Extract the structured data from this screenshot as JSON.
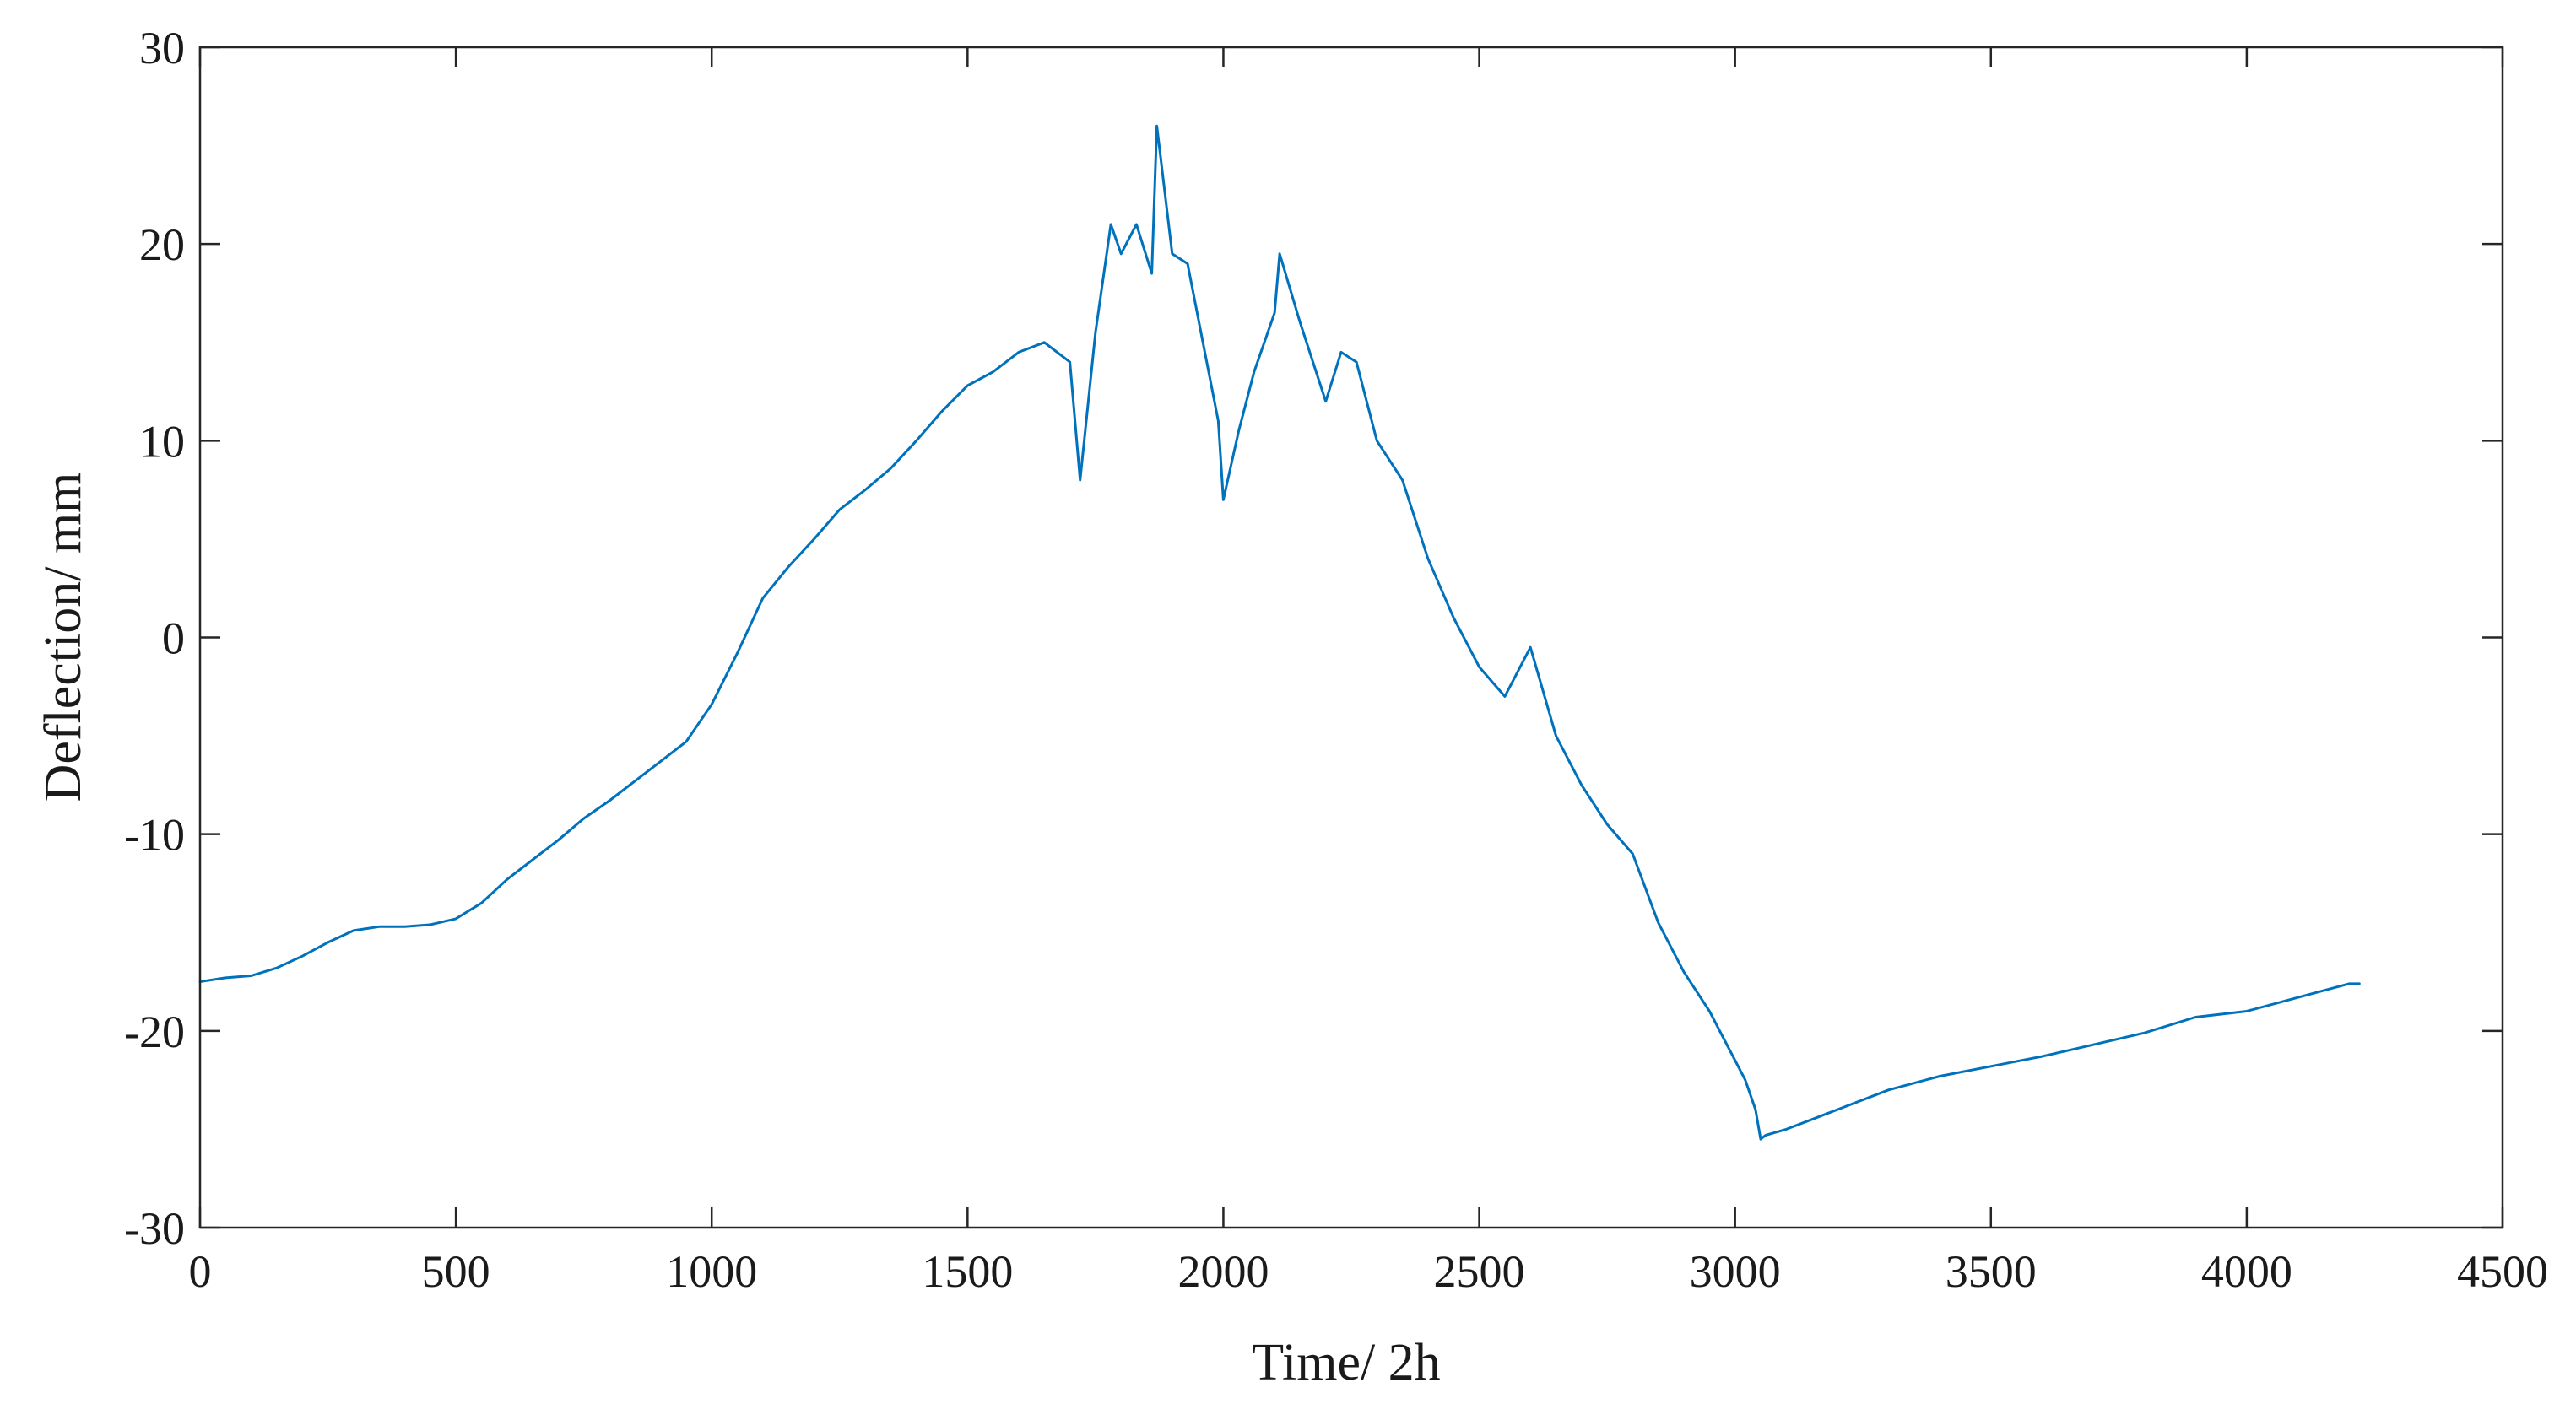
{
  "chart_data": {
    "type": "line",
    "title": "",
    "xlabel": "Time/ 2h",
    "ylabel": "Deflection/ mm",
    "xlim": [
      0,
      4500
    ],
    "ylim": [
      -30,
      30
    ],
    "xticks": [
      0,
      500,
      1000,
      1500,
      2000,
      2500,
      3000,
      3500,
      4000,
      4500
    ],
    "yticks": [
      -30,
      -20,
      -10,
      0,
      10,
      20,
      30
    ],
    "grid": false,
    "legend": "none",
    "line_color": "#0072BD",
    "series": [
      {
        "x": [
          0,
          50,
          100,
          150,
          200,
          250,
          300,
          350,
          400,
          450,
          500,
          550,
          600,
          650,
          700,
          750,
          800,
          850,
          900,
          950,
          1000,
          1050,
          1100,
          1150,
          1200,
          1250,
          1300,
          1350,
          1400,
          1450,
          1500,
          1550,
          1600,
          1650,
          1700,
          1720,
          1750,
          1780,
          1800,
          1830,
          1860,
          1870,
          1900,
          1930,
          1960,
          1990,
          2000,
          2030,
          2060,
          2100,
          2110,
          2150,
          2200,
          2230,
          2260,
          2300,
          2350,
          2400,
          2450,
          2500,
          2550,
          2600,
          2650,
          2700,
          2750,
          2800,
          2850,
          2900,
          2950,
          3000,
          3020,
          3040,
          3050,
          3060,
          3100,
          3150,
          3200,
          3300,
          3400,
          3500,
          3600,
          3700,
          3800,
          3900,
          4000,
          4100,
          4200,
          4220
        ],
        "y": [
          -17.5,
          -17.3,
          -17.2,
          -16.8,
          -16.2,
          -15.5,
          -14.9,
          -14.7,
          -14.7,
          -14.6,
          -14.3,
          -13.5,
          -12.3,
          -11.3,
          -10.3,
          -9.2,
          -8.3,
          -7.3,
          -6.3,
          -5.3,
          -3.4,
          -0.8,
          2.0,
          3.6,
          5.0,
          6.5,
          7.5,
          8.6,
          10.0,
          11.5,
          12.8,
          13.5,
          14.5,
          15.0,
          14.0,
          8.0,
          15.5,
          21.0,
          19.5,
          21.0,
          18.5,
          26.0,
          19.5,
          19.0,
          15.0,
          11.0,
          7.0,
          10.5,
          13.5,
          16.5,
          19.5,
          16.0,
          12.0,
          14.5,
          14.0,
          10.0,
          8.0,
          4.0,
          1.0,
          -1.5,
          -3.0,
          -0.5,
          -5.0,
          -7.5,
          -9.5,
          -11.0,
          -14.5,
          -17.0,
          -19.0,
          -21.5,
          -22.5,
          -24.0,
          -25.5,
          -25.3,
          -25.0,
          -24.5,
          -24.0,
          -23.0,
          -22.3,
          -21.8,
          -21.3,
          -20.7,
          -20.1,
          -19.3,
          -19.0,
          -18.3,
          -17.6,
          -17.6
        ]
      }
    ]
  }
}
